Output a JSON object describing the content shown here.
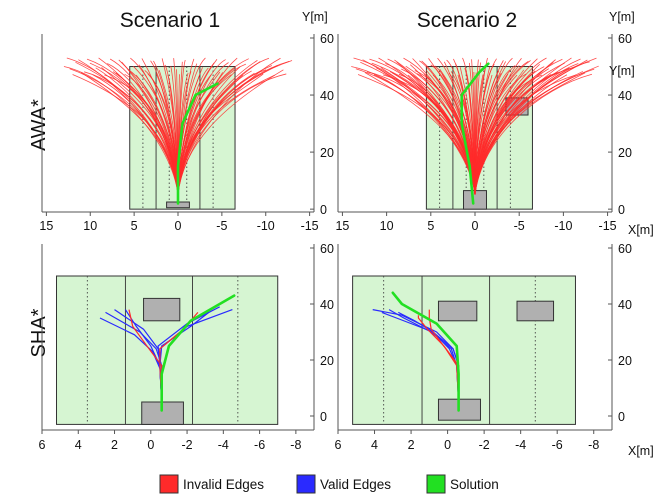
{
  "columns": [
    "Scenario 1",
    "Scenario 2"
  ],
  "rows": [
    "AWA*",
    "SHA*"
  ],
  "axis_units": {
    "y": "Y[m]",
    "x": "X[m]"
  },
  "legend": [
    {
      "label": "Invalid Edges",
      "color": "#ff2a2a"
    },
    {
      "label": "Valid Edges",
      "color": "#2a2aff"
    },
    {
      "label": "Solution",
      "color": "#22e022"
    }
  ],
  "colors": {
    "lane_fill": "#d6f5d2",
    "obstacle": "#b0b0b0",
    "invalid": "#ff2a2a",
    "valid": "#2a2aff",
    "solution": "#22e022"
  },
  "chart_data": [
    {
      "type": "line",
      "name": "AWA* Scenario 1",
      "x_ticks": [
        "15",
        "10",
        "5",
        "0",
        "-5",
        "-10",
        "-15"
      ],
      "y_ticks": [
        "60",
        "40",
        "20",
        "0"
      ],
      "xlim": [
        15.5,
        -15.5
      ],
      "ylim": [
        -1,
        60
      ],
      "road": {
        "x": [
          5.5,
          -6.5
        ],
        "y": [
          0,
          50
        ],
        "lane_lines": [
          2.5,
          -2.5
        ],
        "dotted_lines": [
          4.0,
          1.0,
          -1.0,
          -4.0
        ]
      },
      "obstacles": [
        {
          "x": [
            1.3,
            -1.3
          ],
          "y": [
            0.5,
            2.5
          ]
        }
      ],
      "fan": {
        "origin": [
          0,
          5
        ],
        "x_range": [
          13,
          -13
        ],
        "y_end": 50,
        "count": 80
      },
      "solution": {
        "x": [
          0,
          0,
          -0.5,
          -2,
          -4.5
        ],
        "y": [
          2,
          15,
          30,
          40,
          44
        ]
      }
    },
    {
      "type": "line",
      "name": "AWA* Scenario 2",
      "x_ticks": [
        "15",
        "10",
        "5",
        "0",
        "-5",
        "-10",
        "-15"
      ],
      "y_ticks": [
        "60",
        "40",
        "20",
        "0"
      ],
      "xlim": [
        15.5,
        -15.5
      ],
      "ylim": [
        -1,
        60
      ],
      "road": {
        "x": [
          5.5,
          -6.5
        ],
        "y": [
          0,
          50
        ],
        "lane_lines": [
          2.5,
          -2.5
        ],
        "dotted_lines": [
          4.0,
          1.0,
          -1.0,
          -4.0
        ]
      },
      "obstacles": [
        {
          "x": [
            1.3,
            -1.3
          ],
          "y": [
            0,
            6.5
          ]
        },
        {
          "x": [
            -3.5,
            -6.0
          ],
          "y": [
            33,
            39
          ]
        }
      ],
      "fan": {
        "origin": [
          0,
          5
        ],
        "x_range": [
          14,
          -14
        ],
        "y_end": 50,
        "count": 110
      },
      "solution": {
        "x": [
          0.2,
          0.6,
          1.5,
          1.5,
          -0.5,
          -1.5
        ],
        "y": [
          2,
          15,
          30,
          40,
          48,
          51
        ]
      }
    },
    {
      "type": "line",
      "name": "SHA* Scenario 1",
      "x_ticks": [
        "6",
        "4",
        "2",
        "0",
        "-2",
        "-4",
        "-6",
        "-8"
      ],
      "y_ticks": [
        "60",
        "40",
        "20",
        "0"
      ],
      "xlim": [
        6,
        -9
      ],
      "ylim": [
        -5,
        60
      ],
      "road": {
        "x": [
          5.2,
          -7.0
        ],
        "y": [
          -3,
          50
        ],
        "lane_lines": [
          1.4,
          -2.3
        ],
        "dotted_lines": [
          3.5,
          -4.8
        ]
      },
      "obstacles": [
        {
          "x": [
            0.5,
            -1.8
          ],
          "y": [
            -3,
            5
          ]
        },
        {
          "x": [
            0.4,
            -1.6
          ],
          "y": [
            34,
            42
          ]
        }
      ],
      "tree": {
        "origin": [
          -0.6,
          5
        ],
        "branches": [
          {
            "x": [
              -0.6,
              -0.6,
              -0.3,
              0.6,
              2.5
            ],
            "y": [
              5,
              18,
              24,
              30,
              37
            ],
            "valid": true
          },
          {
            "x": [
              -0.6,
              -0.6,
              -0.4,
              0.4,
              2.0
            ],
            "y": [
              5,
              17,
              24,
              31,
              38
            ],
            "valid": true
          },
          {
            "x": [
              -0.6,
              -0.5,
              -0.1,
              0.9,
              2.8
            ],
            "y": [
              5,
              17,
              23,
              29,
              35
            ],
            "valid": true
          },
          {
            "x": [
              -0.6,
              -0.5,
              0.0,
              0.8,
              1.4
            ],
            "y": [
              5,
              18,
              25,
              32,
              38
            ],
            "valid": true
          },
          {
            "x": [
              -0.6,
              -0.6,
              0.1,
              1.0,
              1.2
            ],
            "y": [
              5,
              18,
              24,
              32,
              38
            ],
            "valid": false
          },
          {
            "x": [
              -0.6,
              -0.5,
              -0.5,
              -2.0,
              -4.5
            ],
            "y": [
              5,
              18,
              24,
              32,
              38
            ],
            "valid": true
          },
          {
            "x": [
              -0.6,
              -0.5,
              -0.4,
              -2.0,
              -3.8
            ],
            "y": [
              5,
              18,
              25,
              33,
              39
            ],
            "valid": true
          },
          {
            "x": [
              -0.6,
              -0.5,
              -0.6,
              -2.2,
              -3.2
            ],
            "y": [
              5,
              18,
              25,
              32,
              37
            ],
            "valid": true
          },
          {
            "x": [
              -0.6,
              -0.5,
              -0.5,
              -1.8,
              -2.6
            ],
            "y": [
              5,
              18,
              24,
              31,
              37
            ],
            "valid": false
          }
        ]
      },
      "solution": {
        "x": [
          -0.6,
          -0.6,
          -1.0,
          -2.2,
          -4.6
        ],
        "y": [
          2,
          15,
          25,
          34,
          43
        ]
      }
    },
    {
      "type": "line",
      "name": "SHA* Scenario 2",
      "x_ticks": [
        "6",
        "4",
        "2",
        "0",
        "-2",
        "-4",
        "-6",
        "-8"
      ],
      "y_ticks": [
        "60",
        "40",
        "20",
        "0"
      ],
      "xlim": [
        6,
        -9
      ],
      "ylim": [
        -5,
        60
      ],
      "road": {
        "x": [
          5.2,
          -7.0
        ],
        "y": [
          -3,
          50
        ],
        "lane_lines": [
          1.4,
          -2.3
        ],
        "dotted_lines": [
          3.5,
          -4.8
        ]
      },
      "obstacles": [
        {
          "x": [
            0.5,
            -1.8
          ],
          "y": [
            -1.5,
            6
          ]
        },
        {
          "x": [
            0.5,
            -1.6
          ],
          "y": [
            34,
            41
          ]
        },
        {
          "x": [
            -3.8,
            -5.8
          ],
          "y": [
            34,
            41
          ]
        }
      ],
      "tree": {
        "origin": [
          -0.6,
          5
        ],
        "branches": [
          {
            "x": [
              -0.6,
              -0.6,
              -0.3,
              0.6,
              2.5,
              4.1
            ],
            "y": [
              5,
              18,
              24,
              30,
              36,
              38
            ],
            "valid": true
          },
          {
            "x": [
              -0.6,
              -0.6,
              -0.3,
              0.8,
              2.8,
              3.6
            ],
            "y": [
              5,
              18,
              24,
              30,
              35,
              37
            ],
            "valid": true
          },
          {
            "x": [
              -0.6,
              -0.5,
              -0.2,
              0.9,
              2.4,
              3.2
            ],
            "y": [
              5,
              18,
              24,
              30,
              35,
              38
            ],
            "valid": true
          },
          {
            "x": [
              -0.6,
              -0.5,
              -0.1,
              0.8,
              1.8,
              2.7
            ],
            "y": [
              5,
              18,
              24,
              30,
              34,
              37
            ],
            "valid": true
          },
          {
            "x": [
              -0.6,
              -0.5,
              0.1,
              0.9,
              1.0,
              1.0
            ],
            "y": [
              5,
              18,
              24,
              31,
              35,
              38
            ],
            "valid": false
          },
          {
            "x": [
              -0.6,
              -0.6,
              0.2,
              1.1,
              1.6,
              1.6
            ],
            "y": [
              5,
              18,
              25,
              31,
              35,
              36
            ],
            "valid": false
          }
        ]
      },
      "solution": {
        "x": [
          -0.6,
          -0.6,
          -0.5,
          0.6,
          2.5,
          3.0
        ],
        "y": [
          2,
          15,
          25,
          33,
          40,
          44
        ]
      }
    }
  ]
}
